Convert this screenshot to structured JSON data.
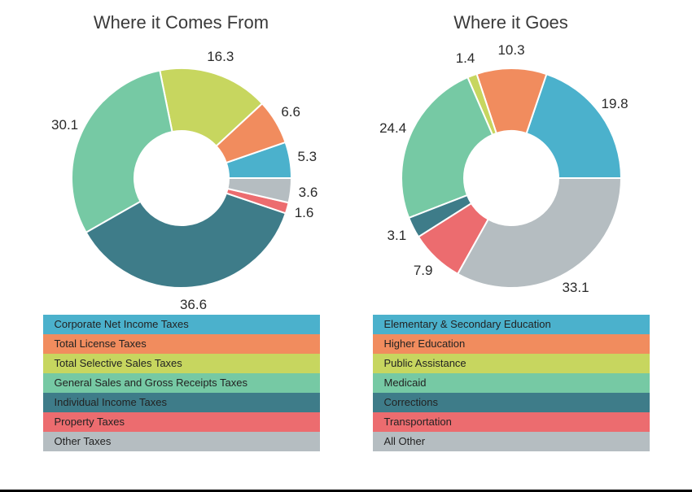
{
  "background_color": "#ffffff",
  "title_fontsize": 22,
  "title_color": "#3a3a3a",
  "label_fontsize": 17,
  "label_color": "#2a2a2a",
  "legend_fontsize": 13,
  "donut_outer_radius": 135,
  "donut_inner_radius": 58,
  "charts": [
    {
      "title": "Where it Comes From",
      "type": "donut",
      "start_angle_deg": -90,
      "direction": "clockwise",
      "slices": [
        {
          "label": "Corporate Net Income Taxes",
          "value": 5.3,
          "color": "#4bb1cc"
        },
        {
          "label": "Total License Taxes",
          "value": 6.6,
          "color": "#f18c5e"
        },
        {
          "label": "Total Selective Sales Taxes",
          "value": 16.3,
          "color": "#c7d65f"
        },
        {
          "label": "General Sales and Gross Receipts Taxes",
          "value": 30.1,
          "color": "#76c9a4"
        },
        {
          "label": "Individual Income Taxes",
          "value": 36.6,
          "color": "#3e7c89"
        },
        {
          "label": "Property Taxes",
          "value": 1.6,
          "color": "#ec6c6f"
        },
        {
          "label": "Other Taxes",
          "value": 3.6,
          "color": "#b5bdc1"
        }
      ]
    },
    {
      "title": "Where it Goes",
      "type": "donut",
      "start_angle_deg": -90,
      "direction": "clockwise",
      "slices": [
        {
          "label": "Elementary & Secondary Education",
          "value": 19.8,
          "color": "#4bb1cc"
        },
        {
          "label": "Higher Education",
          "value": 10.3,
          "color": "#f18c5e"
        },
        {
          "label": "Public Assistance",
          "value": 1.4,
          "color": "#c7d65f"
        },
        {
          "label": "Medicaid",
          "value": 24.4,
          "color": "#76c9a4"
        },
        {
          "label": "Corrections",
          "value": 3.1,
          "color": "#3e7c89"
        },
        {
          "label": "Transportation",
          "value": 7.9,
          "color": "#ec6c6f"
        },
        {
          "label": "All Other",
          "value": 33.1,
          "color": "#b5bdc1"
        }
      ]
    }
  ]
}
